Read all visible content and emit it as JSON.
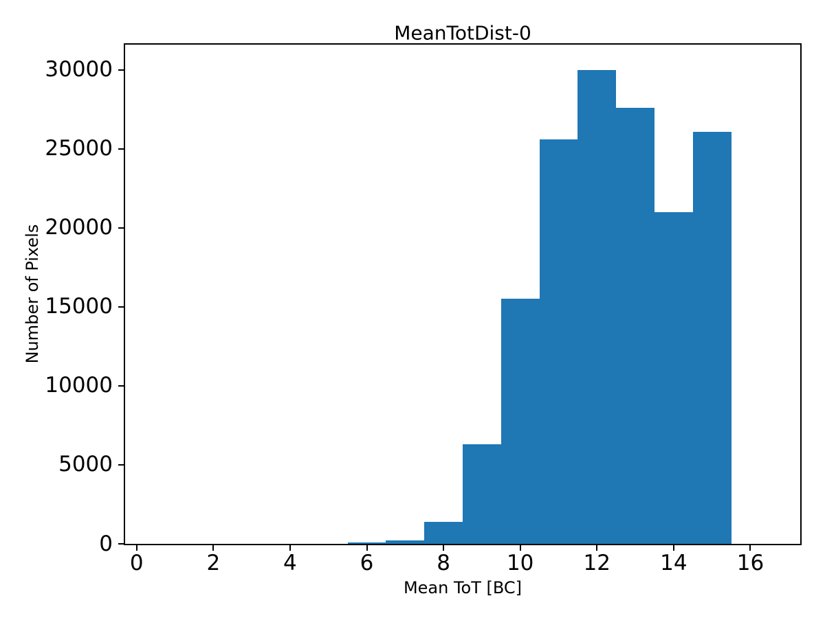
{
  "figure": {
    "background_color": "#ffffff",
    "text_color": "#000000"
  },
  "chart_data": {
    "type": "bar",
    "subtype": "histogram",
    "title": "MeanTotDist-0",
    "xlabel": "Mean ToT [BC]",
    "ylabel": "Number of Pixels",
    "bar_color": "#1f77b4",
    "grid": false,
    "legend_position": "none",
    "xlim": [
      -0.3,
      17.3
    ],
    "ylim": [
      0,
      31600
    ],
    "xticks": [
      0,
      2,
      4,
      6,
      8,
      10,
      12,
      14,
      16
    ],
    "yticks": [
      0,
      5000,
      10000,
      15000,
      20000,
      25000,
      30000
    ],
    "bins": [
      {
        "x0": 0.5,
        "x1": 1.5,
        "count": 0
      },
      {
        "x0": 1.5,
        "x1": 2.5,
        "count": 0
      },
      {
        "x0": 2.5,
        "x1": 3.5,
        "count": 0
      },
      {
        "x0": 3.5,
        "x1": 4.5,
        "count": 0
      },
      {
        "x0": 4.5,
        "x1": 5.5,
        "count": 0
      },
      {
        "x0": 5.5,
        "x1": 6.5,
        "count": 90
      },
      {
        "x0": 6.5,
        "x1": 7.5,
        "count": 200
      },
      {
        "x0": 7.5,
        "x1": 8.5,
        "count": 1400
      },
      {
        "x0": 8.5,
        "x1": 9.5,
        "count": 6300
      },
      {
        "x0": 9.5,
        "x1": 10.5,
        "count": 15500
      },
      {
        "x0": 10.5,
        "x1": 11.5,
        "count": 25600
      },
      {
        "x0": 11.5,
        "x1": 12.5,
        "count": 30000
      },
      {
        "x0": 12.5,
        "x1": 13.5,
        "count": 27600
      },
      {
        "x0": 13.5,
        "x1": 14.5,
        "count": 21000
      },
      {
        "x0": 14.5,
        "x1": 15.5,
        "count": 26100
      },
      {
        "x0": 15.5,
        "x1": 16.5,
        "count": 0
      }
    ]
  }
}
